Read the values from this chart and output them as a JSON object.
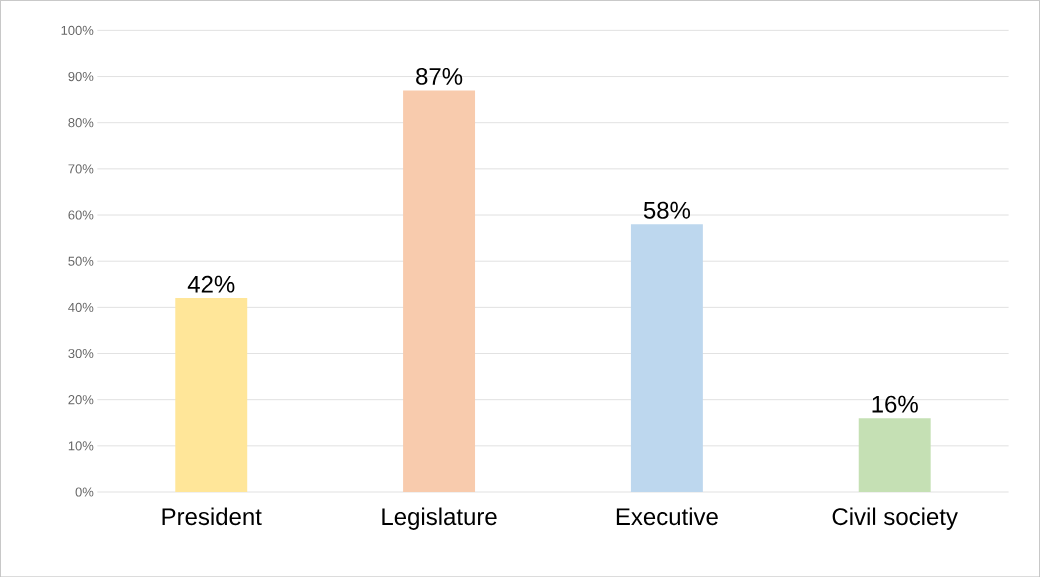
{
  "chart_data": {
    "type": "bar",
    "categories": [
      "President",
      "Legislature",
      "Executive",
      "Civil society"
    ],
    "values": [
      42,
      87,
      58,
      16
    ],
    "colors": [
      "#ffe699",
      "#f8cbad",
      "#bdd7ee",
      "#c5e0b4"
    ],
    "value_labels": [
      "42%",
      "87%",
      "58%",
      "16%"
    ],
    "ylim": [
      0,
      100
    ],
    "yticks": [
      {
        "value": 0,
        "label": "0%"
      },
      {
        "value": 10,
        "label": "10%"
      },
      {
        "value": 20,
        "label": "20%"
      },
      {
        "value": 30,
        "label": "30%"
      },
      {
        "value": 40,
        "label": "40%"
      },
      {
        "value": 50,
        "label": "50%"
      },
      {
        "value": 60,
        "label": "60%"
      },
      {
        "value": 70,
        "label": "70%"
      },
      {
        "value": 80,
        "label": "80%"
      },
      {
        "value": 90,
        "label": "90%"
      },
      {
        "value": 100,
        "label": "100%"
      }
    ],
    "grid": "y"
  }
}
